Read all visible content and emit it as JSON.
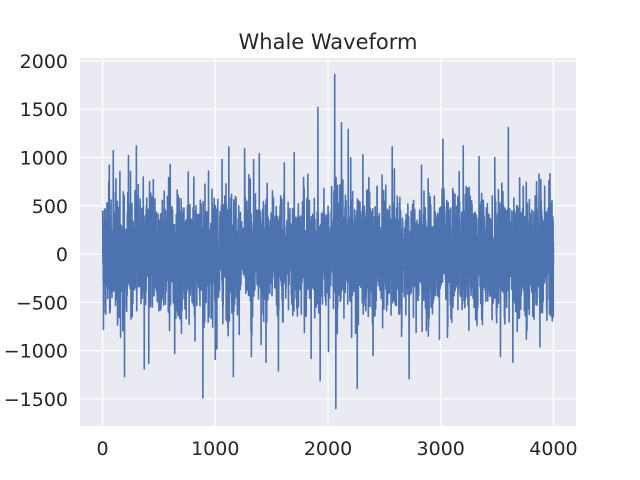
{
  "chart_data": {
    "type": "line",
    "title": "Whale Waveform",
    "xlabel": "",
    "ylabel": "",
    "xlim": [
      -200,
      4200
    ],
    "ylim": [
      -1780,
      2030
    ],
    "x_ticks": [
      0,
      1000,
      2000,
      3000,
      4000
    ],
    "x_tick_labels": [
      "0",
      "1000",
      "2000",
      "3000",
      "4000"
    ],
    "y_ticks": [
      -1500,
      -1000,
      -500,
      0,
      500,
      1000,
      1500,
      2000
    ],
    "y_tick_labels": [
      "−1500",
      "−1000",
      "−500",
      "0",
      "500",
      "1000",
      "1500",
      "2000"
    ],
    "grid": true,
    "background": "#eaeaf2",
    "line_color": "#4c72b0",
    "series": [
      {
        "n_points": 4000,
        "x_start": 0,
        "x_end": 4000,
        "peaks": [
          {
            "x": 0,
            "y": 450
          },
          {
            "x": 8,
            "y": -780
          },
          {
            "x": 60,
            "y": 920
          },
          {
            "x": 95,
            "y": 1070
          },
          {
            "x": 160,
            "y": -860
          },
          {
            "x": 195,
            "y": -1270
          },
          {
            "x": 230,
            "y": 1020
          },
          {
            "x": 300,
            "y": 1120
          },
          {
            "x": 370,
            "y": -1190
          },
          {
            "x": 410,
            "y": -1130
          },
          {
            "x": 450,
            "y": 770
          },
          {
            "x": 600,
            "y": 930
          },
          {
            "x": 640,
            "y": -1030
          },
          {
            "x": 700,
            "y": -820
          },
          {
            "x": 760,
            "y": 850
          },
          {
            "x": 820,
            "y": -900
          },
          {
            "x": 890,
            "y": -1490
          },
          {
            "x": 940,
            "y": 860
          },
          {
            "x": 1000,
            "y": -1090
          },
          {
            "x": 1060,
            "y": 980
          },
          {
            "x": 1120,
            "y": 1110
          },
          {
            "x": 1160,
            "y": -1270
          },
          {
            "x": 1260,
            "y": 1090
          },
          {
            "x": 1320,
            "y": -1060
          },
          {
            "x": 1390,
            "y": 1040
          },
          {
            "x": 1450,
            "y": -1120
          },
          {
            "x": 1560,
            "y": -1210
          },
          {
            "x": 1700,
            "y": 1050
          },
          {
            "x": 1850,
            "y": -1080
          },
          {
            "x": 1910,
            "y": 1520
          },
          {
            "x": 1930,
            "y": -1310
          },
          {
            "x": 2005,
            "y": -1010
          },
          {
            "x": 2060,
            "y": 1860
          },
          {
            "x": 2070,
            "y": -1600
          },
          {
            "x": 2120,
            "y": 1360
          },
          {
            "x": 2180,
            "y": 1290
          },
          {
            "x": 2260,
            "y": -1390
          },
          {
            "x": 2310,
            "y": 1030
          },
          {
            "x": 2400,
            "y": -1050
          },
          {
            "x": 2480,
            "y": 820
          },
          {
            "x": 2570,
            "y": 1110
          },
          {
            "x": 2720,
            "y": -1290
          },
          {
            "x": 2830,
            "y": 920
          },
          {
            "x": 2890,
            "y": -850
          },
          {
            "x": 3020,
            "y": 1190
          },
          {
            "x": 3060,
            "y": -860
          },
          {
            "x": 3200,
            "y": 1120
          },
          {
            "x": 3250,
            "y": -790
          },
          {
            "x": 3340,
            "y": 1010
          },
          {
            "x": 3370,
            "y": -730
          },
          {
            "x": 3480,
            "y": 1000
          },
          {
            "x": 3530,
            "y": -1060
          },
          {
            "x": 3600,
            "y": 1310
          },
          {
            "x": 3640,
            "y": -1120
          },
          {
            "x": 3700,
            "y": 790
          },
          {
            "x": 3760,
            "y": -880
          },
          {
            "x": 3850,
            "y": 750
          },
          {
            "x": 3880,
            "y": -960
          },
          {
            "x": 3960,
            "y": 760
          },
          {
            "x": 3990,
            "y": -690
          }
        ],
        "typical_amplitude": 500
      }
    ]
  }
}
